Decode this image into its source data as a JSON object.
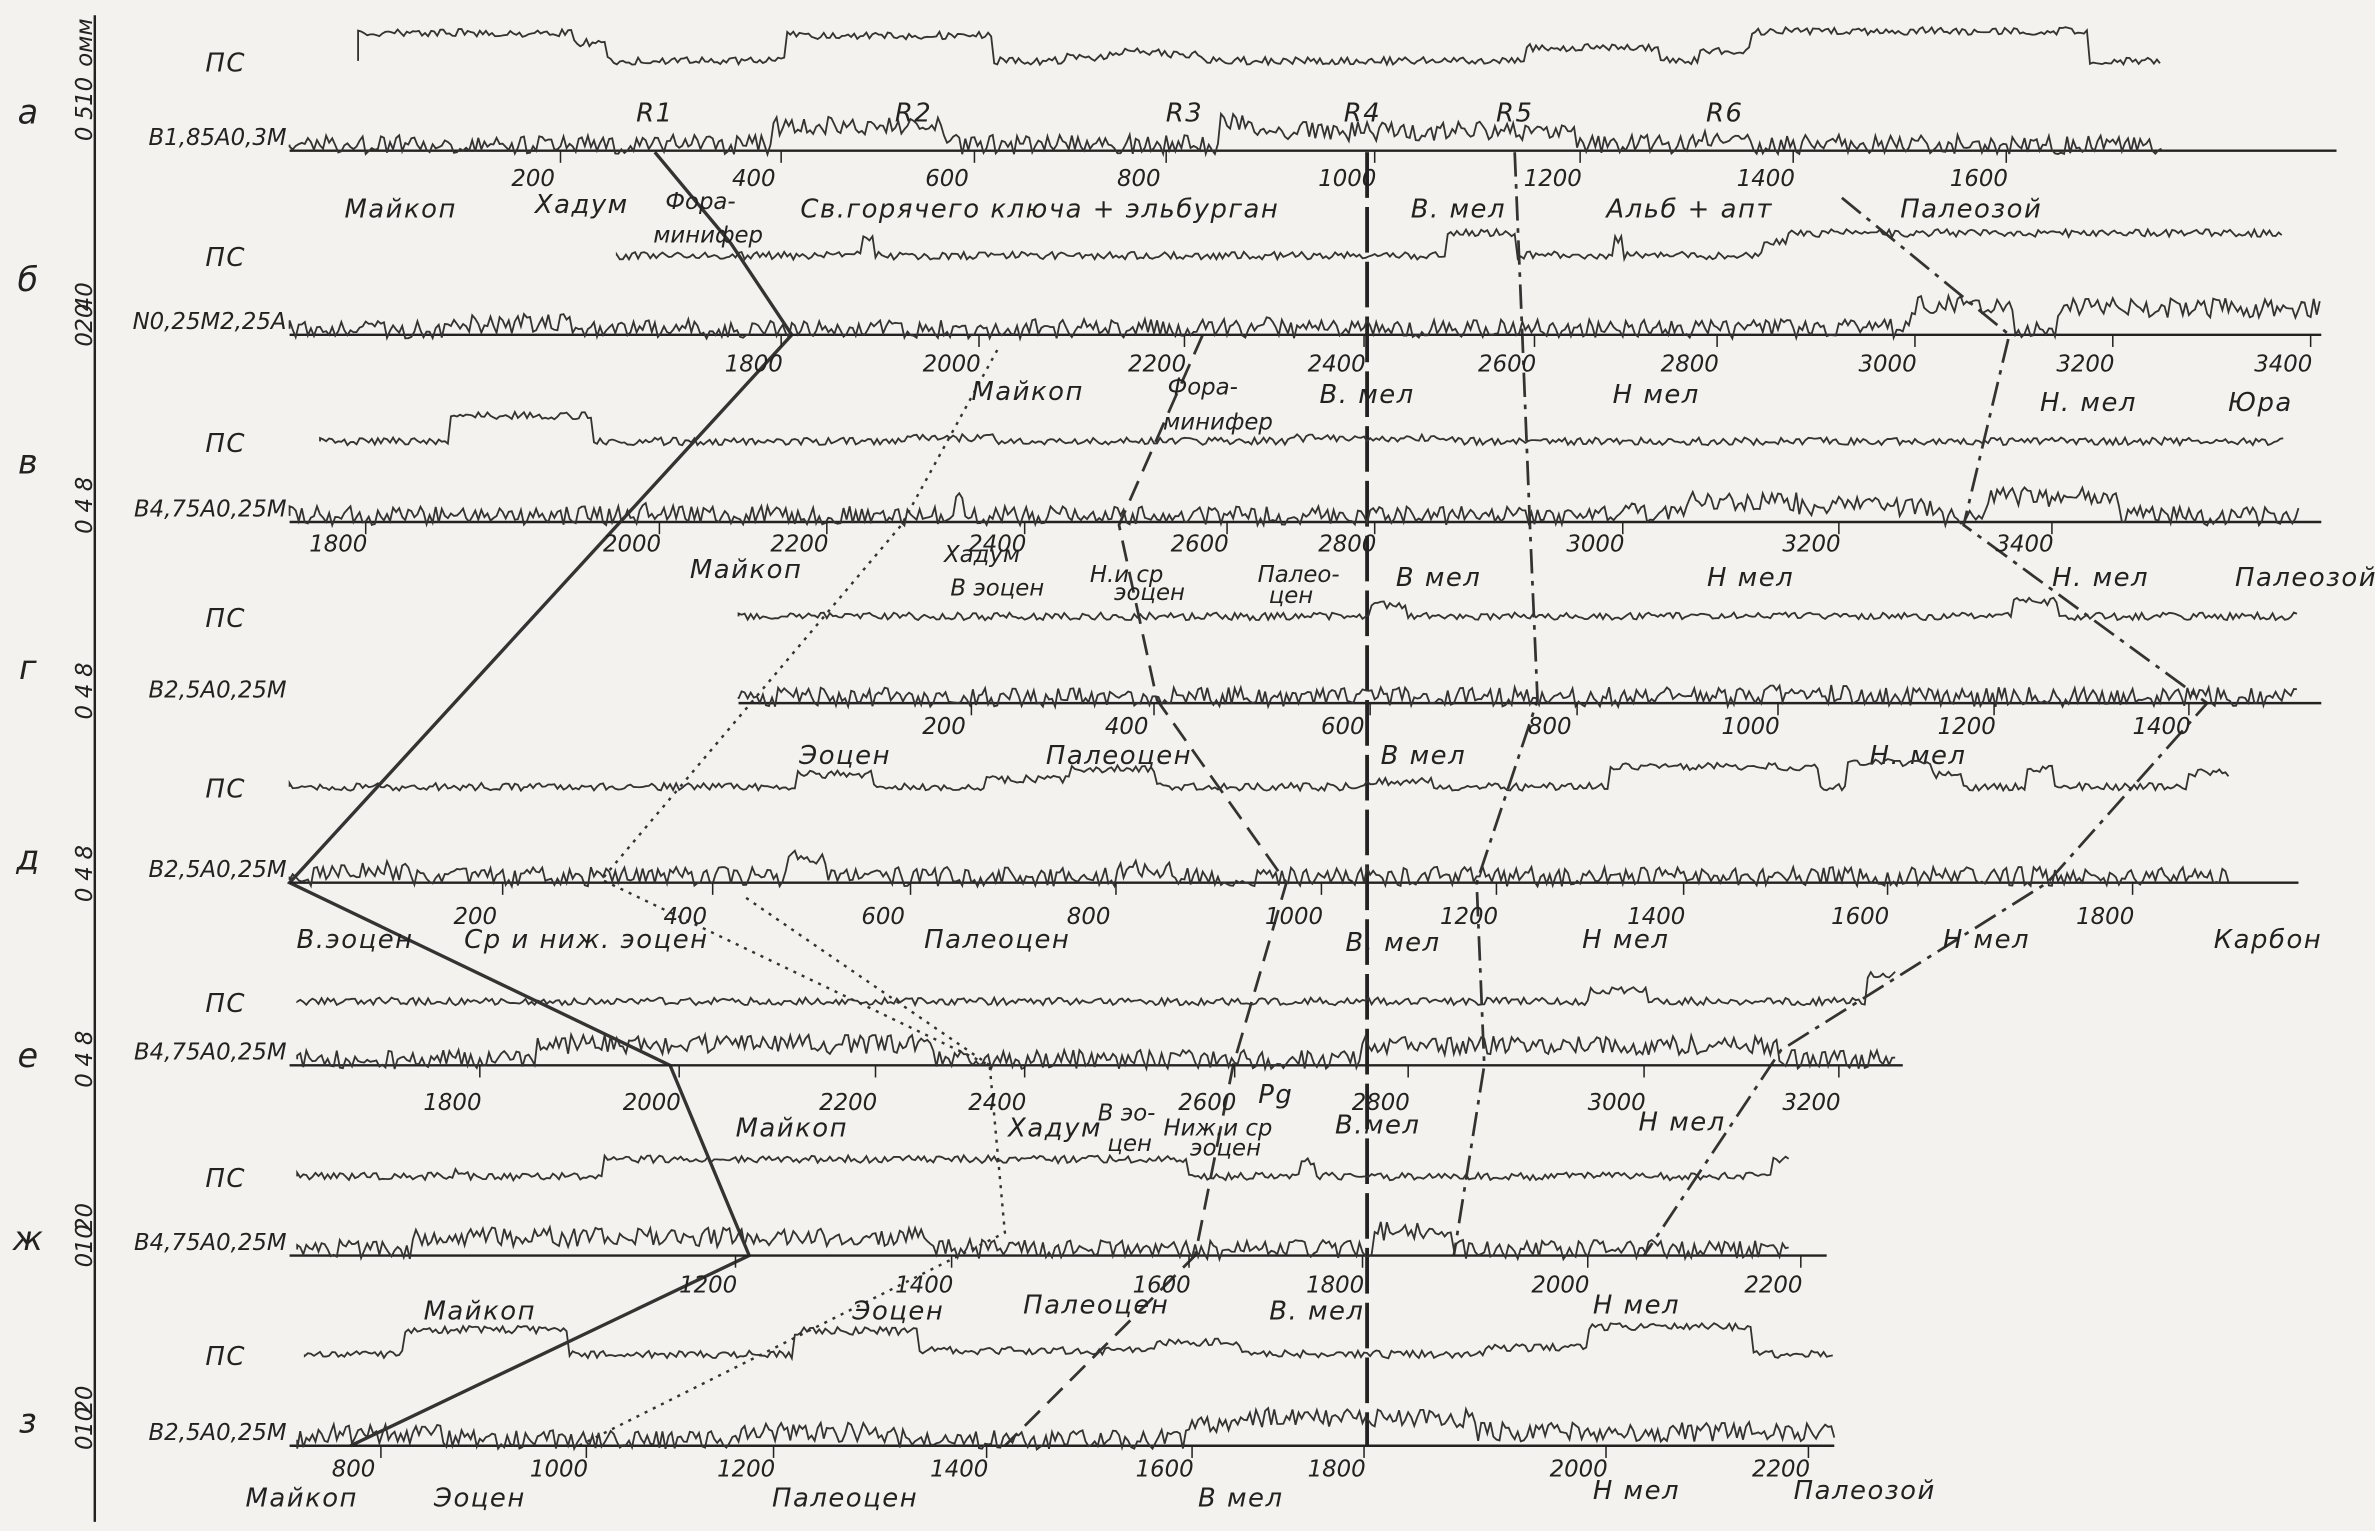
{
  "scale_unit": "омм",
  "correlation_labels": [
    "R1",
    "R2",
    "R3",
    "R4",
    "R5",
    "R6"
  ],
  "panels": [
    {
      "letter": "а",
      "scale": [
        "0",
        "5",
        "10"
      ],
      "curves": [
        "ПС",
        "В1,85А0,3М"
      ],
      "depths": [
        "200",
        "400",
        "600",
        "800",
        "1000",
        "1200",
        "1400",
        "1600"
      ],
      "formations": [
        [
          "Майкоп"
        ],
        [
          "Хадум"
        ],
        [
          "Фора-",
          "минифер"
        ],
        [
          "Св.горячего ключа + эльбурган"
        ],
        [
          "В. мел"
        ],
        [
          "Альб + апт"
        ],
        [
          "Палеозой"
        ]
      ]
    },
    {
      "letter": "б",
      "scale": [
        "0",
        "20",
        "40"
      ],
      "curves": [
        "ПС",
        "N0,25М2,25А"
      ],
      "depths": [
        "1800",
        "2000",
        "2200",
        "2400",
        "2600",
        "2800",
        "3000",
        "3200",
        "3400"
      ],
      "formations": [
        [
          "Майкоп"
        ],
        [
          "Фора-",
          "минифер"
        ],
        [
          "В. мел"
        ],
        [
          "Н мел"
        ],
        [
          "Н. мел"
        ],
        [
          "Юра"
        ]
      ]
    },
    {
      "letter": "в",
      "scale": [
        "0",
        "4",
        "8"
      ],
      "curves": [
        "ПС",
        "В4,75А0,25М"
      ],
      "depths": [
        "1800",
        "2000",
        "2200",
        "2400",
        "2600",
        "2800",
        "3000",
        "3200",
        "3400"
      ],
      "formations": [
        [
          "Майкоп"
        ],
        [
          "Хадум",
          "В эоцен"
        ],
        [
          "Н.и ср",
          "эоцен"
        ],
        [
          "Палео-",
          "цен"
        ],
        [
          "В мел"
        ],
        [
          "Н мел"
        ],
        [
          "Н. мел"
        ],
        [
          "Палеозой"
        ]
      ]
    },
    {
      "letter": "г",
      "scale": [
        "0",
        "4",
        "8"
      ],
      "curves": [
        "ПС",
        "В2,5А0,25М"
      ],
      "depths": [
        "200",
        "400",
        "600",
        "800",
        "1000",
        "1200",
        "1400"
      ],
      "formations": [
        [
          "Эоцен"
        ],
        [
          "Палеоцен"
        ],
        [
          "В мел"
        ],
        [
          "Н. мел"
        ]
      ]
    },
    {
      "letter": "д",
      "scale": [
        "0",
        "4",
        "8"
      ],
      "curves": [
        "ПС",
        "В2,5А0,25М"
      ],
      "depths": [
        "200",
        "400",
        "600",
        "800",
        "1000",
        "1200",
        "1400",
        "1600",
        "1800"
      ],
      "formations": [
        [
          "В.эоцен"
        ],
        [
          "Ср и ниж. эоцен"
        ],
        [
          "Палеоцен"
        ],
        [
          "В. мел"
        ],
        [
          "Н мел"
        ],
        [
          "Н мел"
        ],
        [
          "Карбон"
        ]
      ]
    },
    {
      "letter": "е",
      "scale": [
        "0",
        "4",
        "8"
      ],
      "curves": [
        "ПС",
        "В4,75А0,25М"
      ],
      "depths": [
        "1800",
        "2000",
        "2200",
        "2400",
        "2600",
        "2800",
        "3000",
        "3200"
      ],
      "formations": [
        [
          "Майкоп"
        ],
        [
          "Хадум"
        ],
        [
          "В эо-",
          "цен"
        ],
        [
          "Ниж.и ср",
          "эоцен"
        ],
        [
          "Pg"
        ],
        [
          "В.мел"
        ],
        [
          "Н мел"
        ]
      ]
    },
    {
      "letter": "ж",
      "scale": [
        "0",
        "10",
        "20"
      ],
      "curves": [
        "ПС",
        "В4,75А0,25М"
      ],
      "depths": [
        "1200",
        "1400",
        "1600",
        "1800",
        "2000",
        "2200"
      ],
      "formations": [
        [
          "Майкоп"
        ],
        [
          "Эоцен"
        ],
        [
          "Палеоцен"
        ],
        [
          "В. мел"
        ],
        [
          "Н мел"
        ]
      ]
    },
    {
      "letter": "з",
      "scale": [
        "0",
        "10",
        "20"
      ],
      "curves": [
        "ПС",
        "В2,5А0,25М"
      ],
      "depths": [
        "800",
        "1000",
        "1200",
        "1400",
        "1600",
        "1800",
        "2000",
        "2200"
      ],
      "formations": [
        [
          "Майкоп"
        ],
        [
          "Эоцен"
        ],
        [
          "Палеоцен"
        ],
        [
          "В мел"
        ],
        [
          "Н мел"
        ],
        [
          "Палеозой"
        ]
      ]
    }
  ]
}
